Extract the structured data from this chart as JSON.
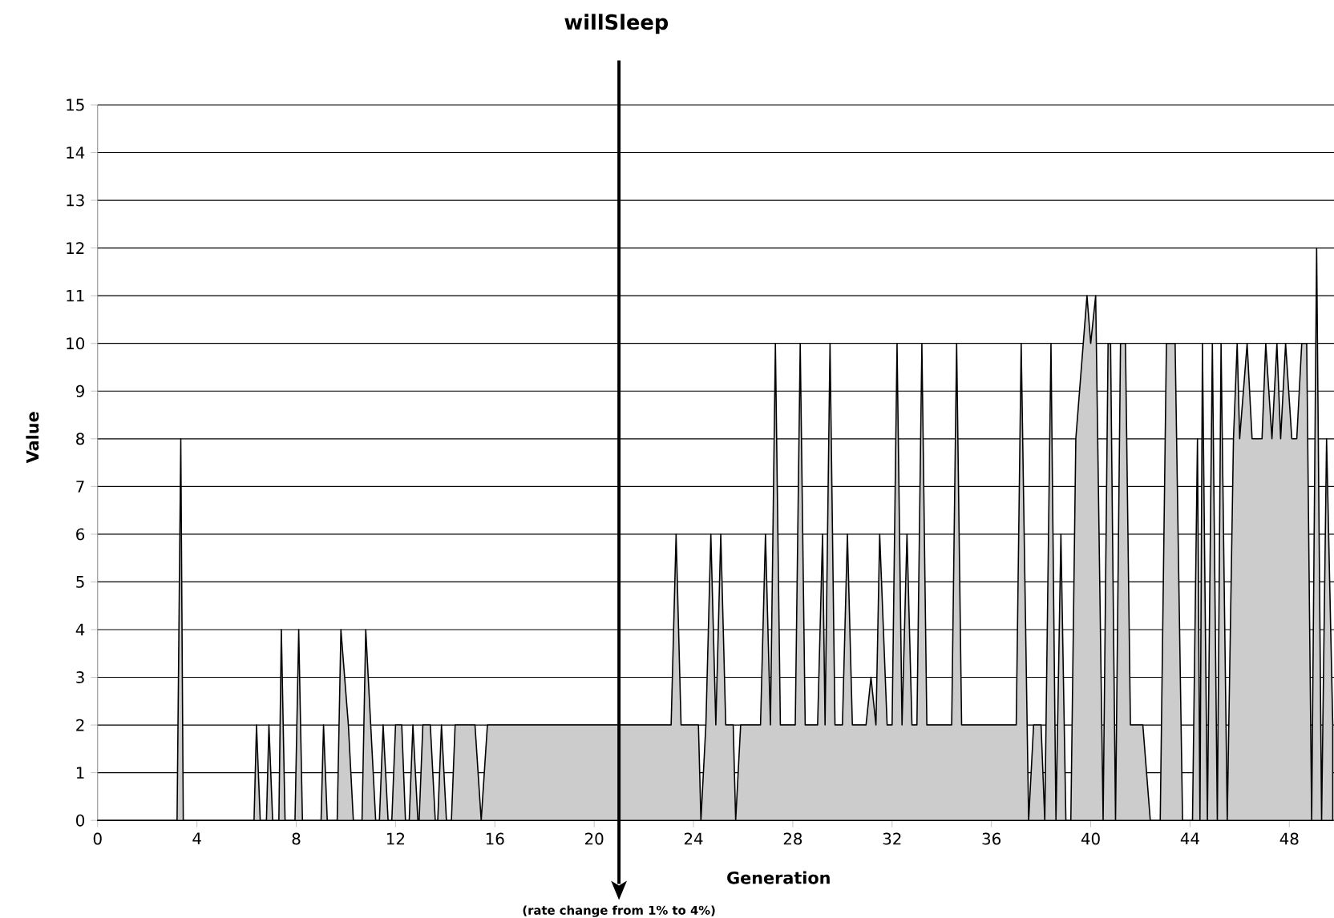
{
  "chart_data": {
    "type": "area",
    "title": "willSleep",
    "xlabel": "Generation",
    "ylabel": "Value",
    "xlim": [
      0,
      49.8
    ],
    "ylim": [
      0,
      15
    ],
    "xticks": [
      0,
      4,
      8,
      12,
      16,
      20,
      24,
      28,
      32,
      36,
      40,
      44,
      48
    ],
    "yticks": [
      0,
      1,
      2,
      3,
      4,
      5,
      6,
      7,
      8,
      9,
      10,
      11,
      12,
      13,
      14,
      15
    ],
    "grid": "y",
    "ref_lines": [
      {
        "axis": "x",
        "value": 21,
        "label": "(rate change from 1% to 4%)",
        "color": "#000000"
      }
    ],
    "series": [
      {
        "color": "#cccccc",
        "x": [
          0,
          3.2,
          3.35,
          3.45,
          6.3,
          6.4,
          6.55,
          6.8,
          6.9,
          7.05,
          7.3,
          7.4,
          7.55,
          7.95,
          8.1,
          8.25,
          9.0,
          9.1,
          9.25,
          9.65,
          9.8,
          10.1,
          10.3,
          10.65,
          10.8,
          11.0,
          11.2,
          11.35,
          11.5,
          11.7,
          11.85,
          12.0,
          12.25,
          12.4,
          12.55,
          12.7,
          12.9,
          12.95,
          13.1,
          13.4,
          13.6,
          13.7,
          13.85,
          14.05,
          14.25,
          14.4,
          15.2,
          15.45,
          15.7,
          23.1,
          23.3,
          23.5,
          24.2,
          24.3,
          24.5,
          24.7,
          24.9,
          25.1,
          25.3,
          25.6,
          25.7,
          25.9,
          26.7,
          26.9,
          27.1,
          27.3,
          27.5,
          28.1,
          28.3,
          28.5,
          29.0,
          29.2,
          29.3,
          29.5,
          29.7,
          30.0,
          30.2,
          30.4,
          30.95,
          31.15,
          31.35,
          31.5,
          31.8,
          32.0,
          32.2,
          32.4,
          32.6,
          32.8,
          33.0,
          33.2,
          33.4,
          34.4,
          34.6,
          34.8,
          37.0,
          37.2,
          37.5,
          37.7,
          38.0,
          38.15,
          38.4,
          38.6,
          38.8,
          39.0,
          39.2,
          39.4,
          39.85,
          40.0,
          40.2,
          40.5,
          40.7,
          40.8,
          41.0,
          41.2,
          41.4,
          41.6,
          42.1,
          42.4,
          42.8,
          43.05,
          43.4,
          43.7,
          44.1,
          44.3,
          44.4,
          44.5,
          44.7,
          44.9,
          45.1,
          45.25,
          45.5,
          45.75,
          45.9,
          46.0,
          46.3,
          46.5,
          46.9,
          47.05,
          47.3,
          47.5,
          47.65,
          47.85,
          48.1,
          48.3,
          48.5,
          48.7,
          48.9,
          49.1,
          49.3,
          49.5,
          49.75
        ],
        "values": [
          0,
          0,
          8,
          0,
          0,
          2,
          0,
          0,
          2,
          0,
          0,
          4,
          0,
          0,
          4,
          0,
          0,
          2,
          0,
          0,
          4,
          2,
          0,
          0,
          4,
          2,
          0,
          0,
          2,
          0,
          0,
          2,
          2,
          0,
          0,
          2,
          0,
          0,
          2,
          2,
          0,
          0,
          2,
          0,
          0,
          2,
          2,
          0,
          2,
          2,
          6,
          2,
          2,
          0,
          2,
          6,
          2,
          6,
          2,
          2,
          0,
          2,
          2,
          6,
          2,
          10,
          2,
          2,
          10,
          2,
          2,
          6,
          2,
          10,
          2,
          2,
          6,
          2,
          2,
          3,
          2,
          6,
          2,
          2,
          10,
          2,
          6,
          2,
          2,
          10,
          2,
          2,
          10,
          2,
          2,
          10,
          0,
          2,
          2,
          0,
          10,
          0,
          6,
          0,
          0,
          8,
          11,
          10,
          11,
          0,
          10,
          10,
          0,
          10,
          10,
          2,
          2,
          0,
          0,
          10,
          10,
          0,
          0,
          8,
          0,
          10,
          0,
          10,
          0,
          10,
          0,
          8,
          10,
          8,
          10,
          8,
          8,
          10,
          8,
          10,
          8,
          10,
          8,
          8,
          10,
          10,
          0,
          12,
          0,
          8,
          2
        ]
      }
    ]
  }
}
